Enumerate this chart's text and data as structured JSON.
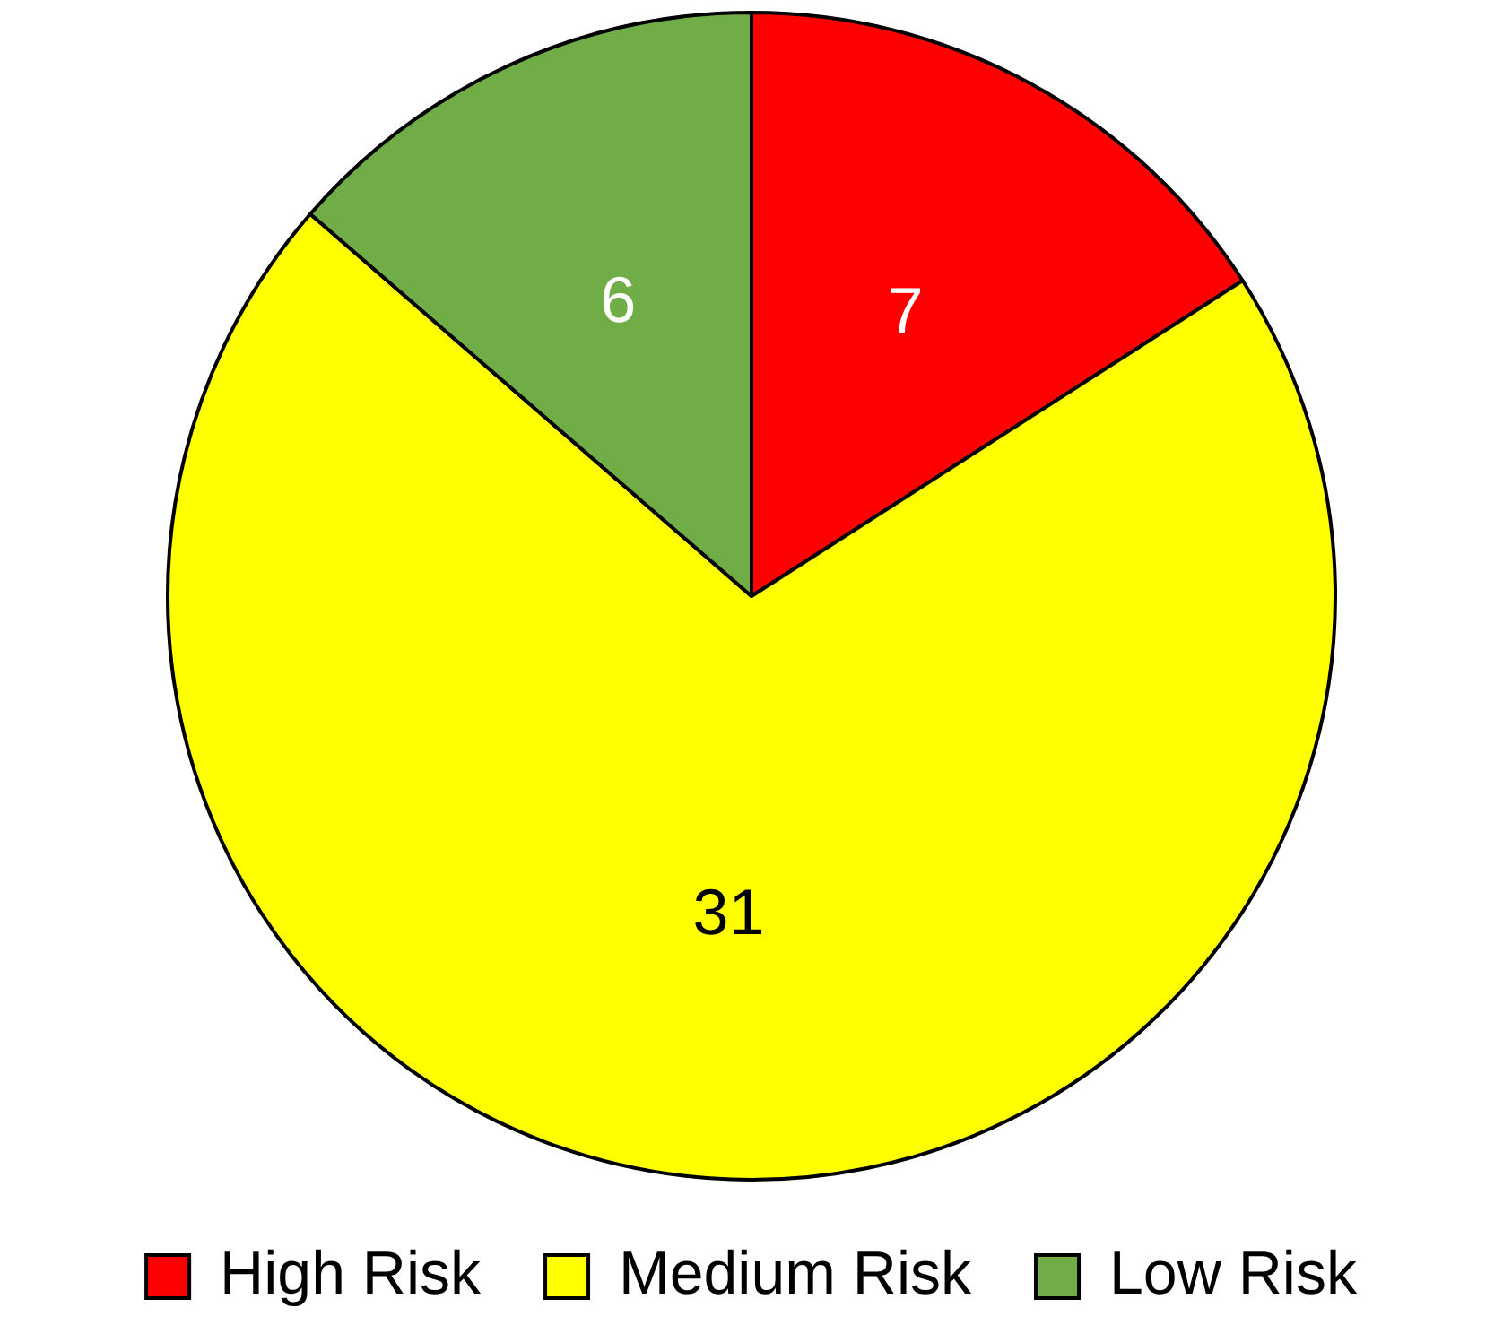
{
  "chart_data": {
    "type": "pie",
    "categories": [
      "High Risk",
      "Medium Risk",
      "Low Risk"
    ],
    "values": [
      7,
      31,
      6
    ],
    "colors": [
      "#ff0000",
      "#ffff00",
      "#70ad47"
    ],
    "data_labels": true,
    "legend": "bottom"
  }
}
